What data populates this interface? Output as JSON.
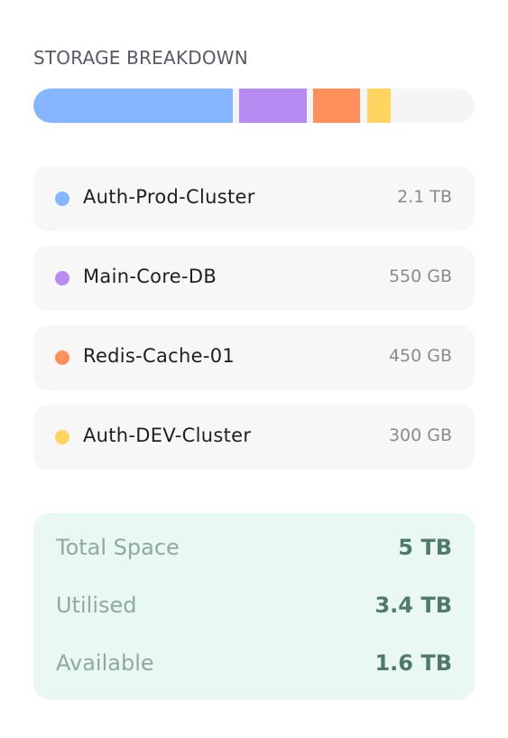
{
  "storage": {
    "title": "STORAGE BREAKDOWN",
    "bar_segments": [
      {
        "name": "Auth-Prod-Cluster",
        "color": "#86b6ff"
      },
      {
        "name": "Main-Core-DB",
        "color": "#b78cf2"
      },
      {
        "name": "Redis-Cache-01",
        "color": "#ff8f5b"
      },
      {
        "name": "Auth-DEV-Cluster",
        "color": "#ffd460"
      }
    ],
    "clusters": [
      {
        "name": "Auth-Prod-Cluster",
        "size": "2.1 TB",
        "color": "#86b6ff"
      },
      {
        "name": "Main-Core-DB",
        "size": "550 GB",
        "color": "#b78cf2"
      },
      {
        "name": "Redis-Cache-01",
        "size": "450 GB",
        "color": "#ff8f5b"
      },
      {
        "name": "Auth-DEV-Cluster",
        "size": "300 GB",
        "color": "#ffd460"
      }
    ]
  },
  "summary": {
    "total_label": "Total Space",
    "total_value": "5 TB",
    "utilised_label": "Utilised",
    "utilised_value": "3.4 TB",
    "available_label": "Available",
    "available_value": "1.6 TB"
  }
}
